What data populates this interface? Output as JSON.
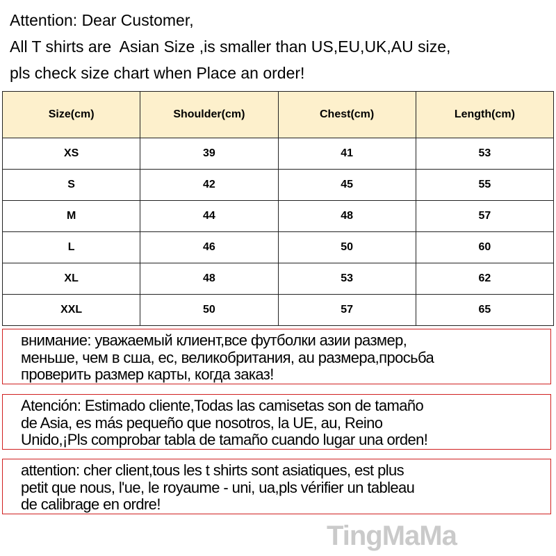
{
  "notice": [
    "Attention: Dear Customer,",
    "All T shirts are  Asian Size ,is smaller than US,EU,UK,AU size,",
    "pls check size chart when Place an order!"
  ],
  "table": {
    "headers": [
      "Size(cm)",
      "Shoulder(cm)",
      "Chest(cm)",
      "Length(cm)"
    ],
    "rows": [
      [
        "XS",
        "39",
        "41",
        "53"
      ],
      [
        "S",
        "42",
        "45",
        "55"
      ],
      [
        "M",
        "44",
        "48",
        "57"
      ],
      [
        "L",
        "46",
        "50",
        "60"
      ],
      [
        "XL",
        "48",
        "53",
        "62"
      ],
      [
        "XXL",
        "50",
        "57",
        "65"
      ]
    ]
  },
  "boxes": [
    [
      "внимание: уважаемый клиент,все футболки азии размер,",
      "меньше, чем в сша, ес, великобритания, au размера,просьба",
      "проверить размер карты, когда заказ!"
    ],
    [
      "Atención: Estimado cliente,Todas las camisetas son de tamaño",
      "de Asia, es más pequeño que nosotros, la UE, au, Reino",
      "Unido,¡Pls comprobar tabla de tamaño cuando lugar una orden!"
    ],
    [
      "attention: cher client,tous les t shirts sont asiatiques, est plus",
      "petit que nous, l'ue, le royaume - uni, ua,pls vérifier un tableau",
      "de calibrage en ordre!"
    ]
  ],
  "watermark": "TingMaMa",
  "colors": {
    "header_bg": "#fdf0cc",
    "box_border": "#d02020"
  }
}
